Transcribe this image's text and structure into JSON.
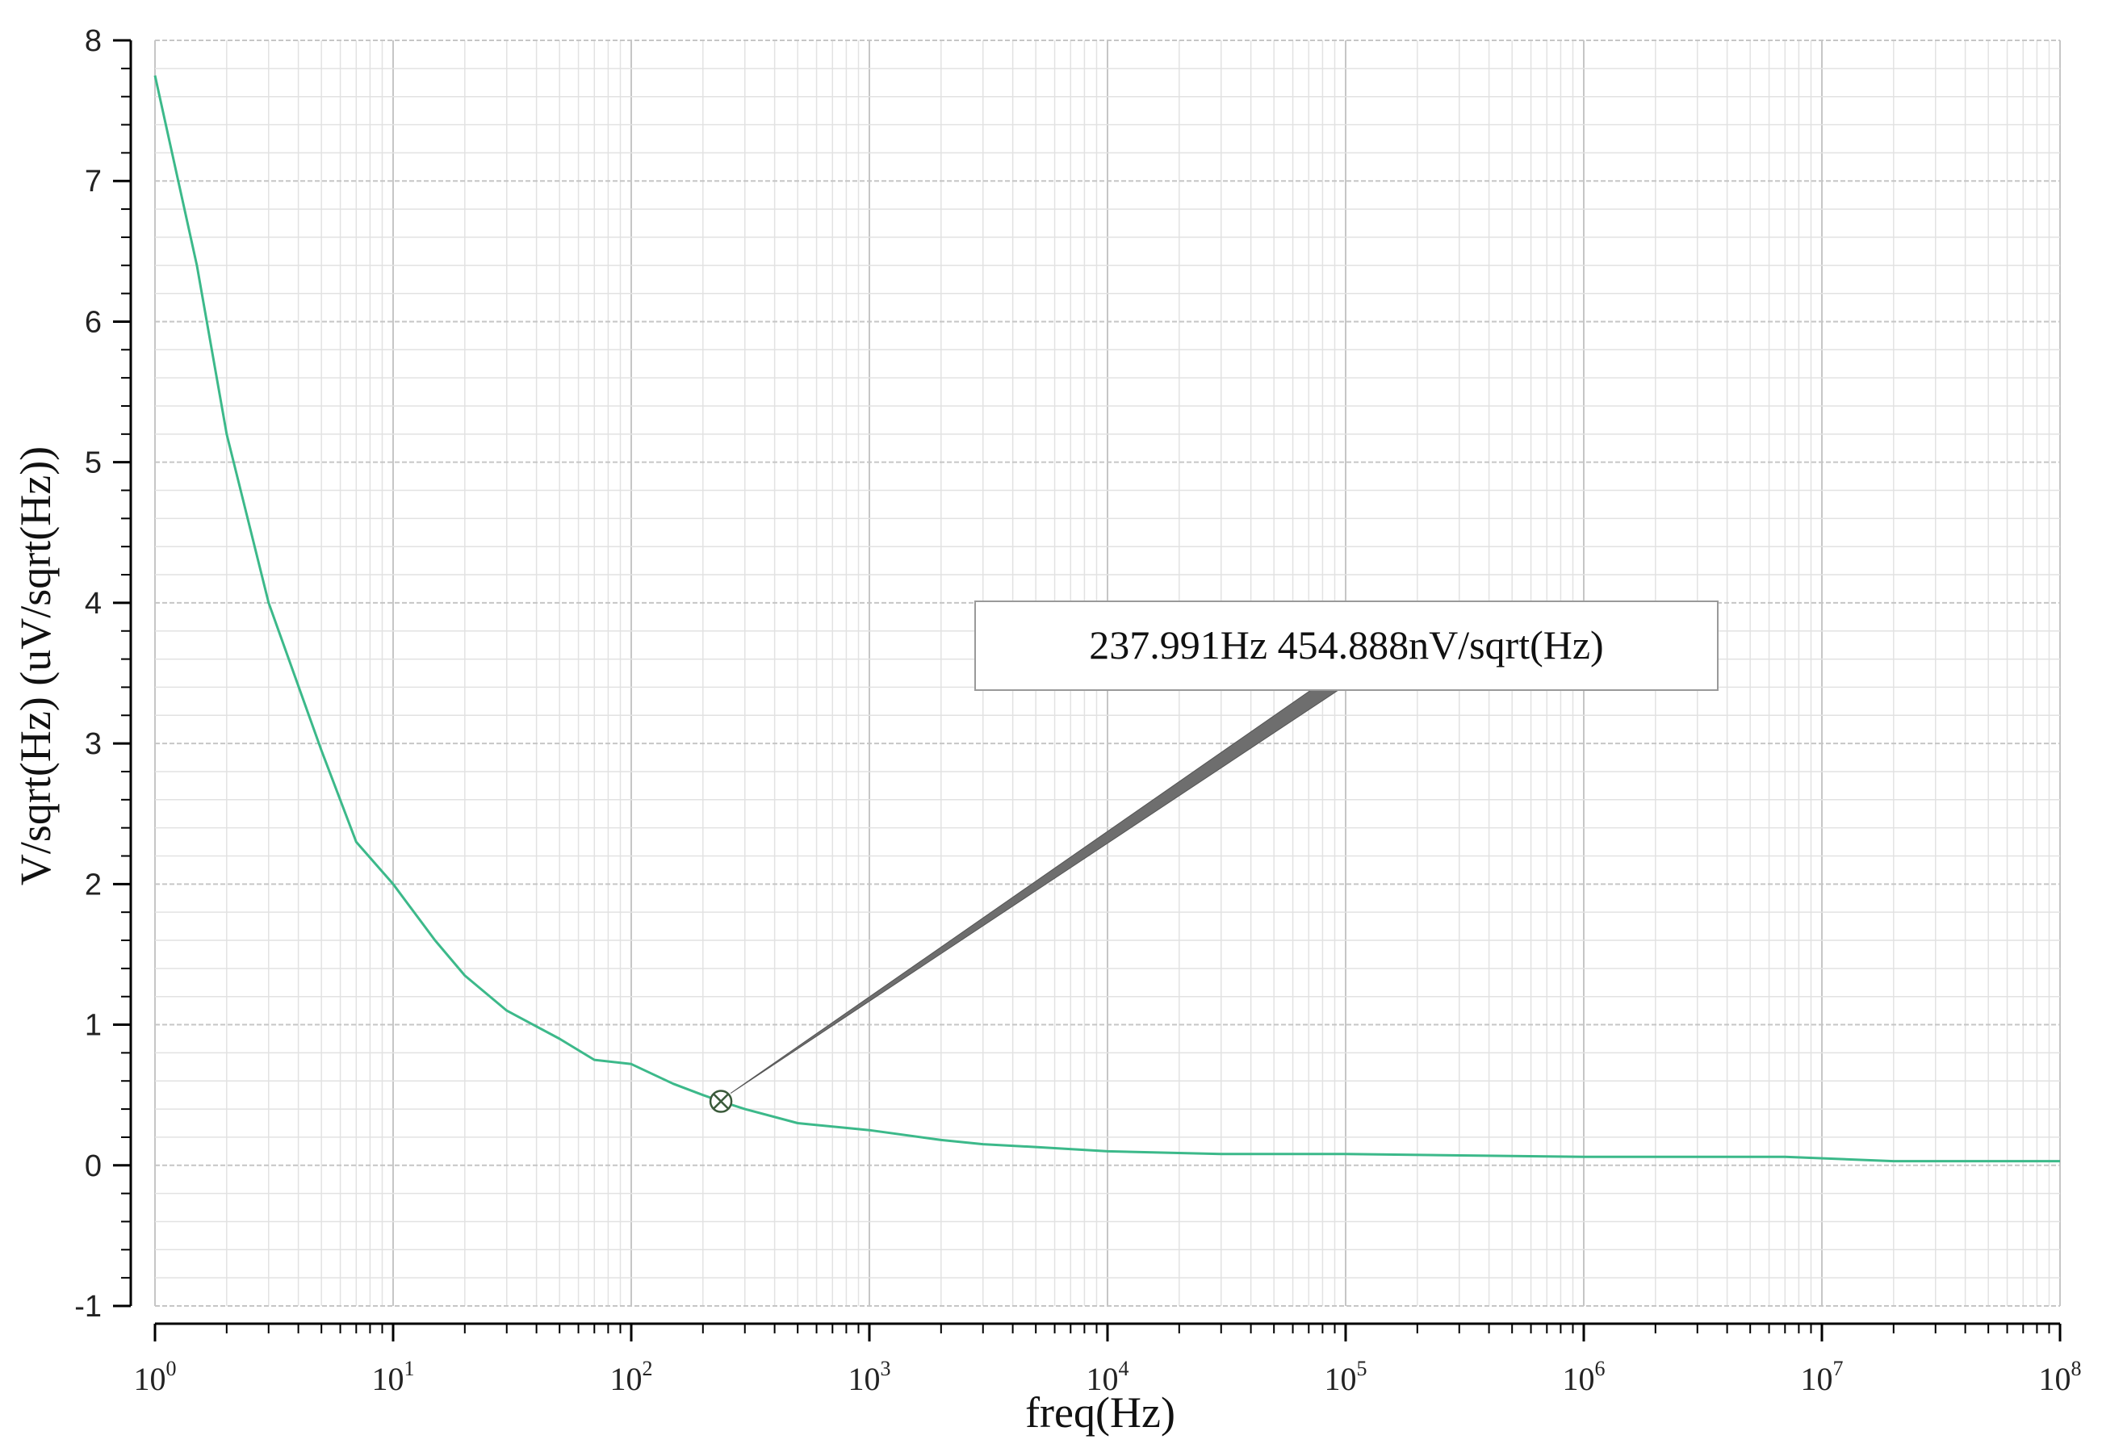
{
  "chart_data": {
    "type": "line",
    "title": "",
    "xlabel": "freq(Hz)",
    "ylabel": "V/sqrt(Hz) (uV/sqrt(Hz))",
    "x_scale": "log",
    "xlim": [
      1,
      100000000
    ],
    "ylim": [
      -1,
      8
    ],
    "grid": true,
    "x_tick_labels": [
      {
        "base": "10",
        "exp": "0",
        "value": 1
      },
      {
        "base": "10",
        "exp": "1",
        "value": 10
      },
      {
        "base": "10",
        "exp": "2",
        "value": 100
      },
      {
        "base": "10",
        "exp": "3",
        "value": 1000
      },
      {
        "base": "10",
        "exp": "4",
        "value": 10000
      },
      {
        "base": "10",
        "exp": "5",
        "value": 100000
      },
      {
        "base": "10",
        "exp": "6",
        "value": 1000000
      },
      {
        "base": "10",
        "exp": "7",
        "value": 10000000
      },
      {
        "base": "10",
        "exp": "8",
        "value": 100000000
      }
    ],
    "y_tick_labels": [
      "8",
      "7",
      "6",
      "5",
      "4",
      "3",
      "2",
      "1",
      "0",
      "-1"
    ],
    "series": [
      {
        "color": "#3cb98a",
        "x": [
          1,
          1.5,
          2,
          3,
          5,
          7,
          10,
          15,
          20,
          30,
          50,
          70,
          100,
          150,
          200,
          237.991,
          300,
          500,
          1000,
          2000,
          3000,
          5000,
          10000,
          30000,
          100000,
          1000000,
          7000000,
          20000000,
          100000000
        ],
        "y": [
          7.75,
          6.4,
          5.2,
          4.0,
          2.95,
          2.3,
          2.0,
          1.6,
          1.35,
          1.1,
          0.9,
          0.75,
          0.72,
          0.58,
          0.5,
          0.455,
          0.4,
          0.3,
          0.25,
          0.18,
          0.15,
          0.13,
          0.1,
          0.08,
          0.08,
          0.06,
          0.06,
          0.03,
          0.03
        ]
      }
    ],
    "annotations": [
      {
        "x": 237.991,
        "y": 0.454888,
        "text": "237.991Hz  454.888nV/sqrt(Hz)"
      }
    ]
  },
  "colors": {
    "curve": "#3cb98a",
    "marker": "#3a5a3a",
    "grid_major": "#c6c6c6",
    "grid_minor": "#e2e2e2",
    "annotation_leader": "#6e6e6e"
  }
}
